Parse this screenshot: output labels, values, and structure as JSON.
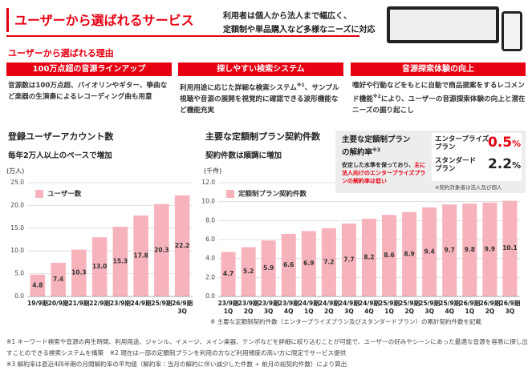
{
  "header": {
    "title": "ユーザーから選ばれるサービス",
    "tagline": "利用者は個人から法人まで幅広く、\n定額制や単品購入など多様なニーズに対応"
  },
  "reasons": {
    "title": "ユーザーから選ばれる理由",
    "items": [
      {
        "heading": "100万点超の音源ラインアップ",
        "body": [
          "音源数は100万点超、バイオリンやギター、箏曲など楽器の生演奏によるレコーディング曲も用意"
        ]
      },
      {
        "heading": "探しやすい検索システム",
        "body": [
          "利用用途に応じた詳細な検索システム",
          "※1",
          "、サンプル視聴や音源の展開を視覚的に確認できる波形機能など機能充実"
        ]
      },
      {
        "heading": "音源探索体験の向上",
        "body": [
          "嗜好や行動などをもとに自動で商品提案をするレコメンド機能",
          "※2",
          "により、ユーザーの音源探索体験の向上と潜在ニーズの掘り起こし"
        ]
      }
    ]
  },
  "chart_data": [
    {
      "type": "bar",
      "title": "登録ユーザーアカウント数",
      "subtitle": "毎年2万人以上のペースで増加",
      "unit_label": "(万人)",
      "categories": [
        "19/9期",
        "20/9期",
        "21/9期",
        "22/9期",
        "23/9期",
        "24/9期",
        "25/9期",
        "26/9期\n3Q"
      ],
      "series": [
        {
          "name": "ユーザー数",
          "color": "#f6b3bc",
          "values": [
            4.8,
            7.4,
            10.3,
            13.0,
            15.3,
            17.8,
            20.3,
            22.2
          ],
          "value_labels": [
            "4.8",
            "7.4",
            "10.3",
            "13.0",
            "15.3",
            "17.8",
            "20.3",
            "22.2"
          ]
        }
      ],
      "ylim": [
        0,
        25
      ],
      "yticks": [
        {
          "value": 0,
          "label": "0.0"
        },
        {
          "value": 5,
          "label": "5.0"
        },
        {
          "value": 10,
          "label": "10.0"
        },
        {
          "value": 15,
          "label": "15.0"
        },
        {
          "value": 20,
          "label": "20.0"
        },
        {
          "value": 25,
          "label": "25.0"
        }
      ],
      "grid": true,
      "legend": "top-left"
    },
    {
      "type": "bar",
      "title": "主要な定額制プラン契約件数",
      "subtitle": "契約件数は順調に増加",
      "unit_label": "(千件)",
      "categories": [
        "23/9期\n1Q",
        "23/9期\n2Q",
        "23/9期\n3Q",
        "23/9期\n4Q",
        "24/9期\n1Q",
        "24/9期\n2Q",
        "24/9期\n3Q",
        "24/9期\n4Q",
        "25/9期\n1Q",
        "25/9期\n2Q",
        "25/9期\n3Q",
        "25/9期\n4Q",
        "26/9期\n1Q",
        "26/9期\n2Q",
        "26/9期\n3Q"
      ],
      "series": [
        {
          "name": "定額制プラン契約件数",
          "color": "#f6b3bc",
          "values": [
            4.7,
            5.2,
            5.9,
            6.6,
            6.9,
            7.2,
            7.7,
            8.2,
            8.6,
            8.9,
            9.4,
            9.7,
            9.8,
            9.9,
            10.1
          ],
          "value_labels": [
            "4.7",
            "5.2",
            "5.9",
            "6.6",
            "6.9",
            "7.2",
            "7.7",
            "8.2",
            "8.6",
            "8.9",
            "9.4",
            "9.7",
            "9.8",
            "9.9",
            "10.1"
          ]
        }
      ],
      "ylim": [
        0,
        12
      ],
      "yticks": [
        {
          "value": 0,
          "label": "0.0"
        },
        {
          "value": 2,
          "label": "2.0"
        },
        {
          "value": 4,
          "label": "4.0"
        },
        {
          "value": 6,
          "label": "6.0"
        },
        {
          "value": 8,
          "label": "8.0"
        },
        {
          "value": 10,
          "label": "10.0"
        },
        {
          "value": 12,
          "label": "12.0"
        }
      ],
      "grid": true,
      "legend": "top-left",
      "note": "※ 主要な定額制契約件数（エンタープライズプラン及びスタンダードプラン）の累計契約件数を記載"
    }
  ],
  "churn": {
    "title": "主要な定額制プラン\nの解約率",
    "title_note": "※3",
    "text": "安定した水準を保っており、",
    "highlight": "主に法人向けのエンタープライズプランの解約率は低い",
    "plans": [
      {
        "name": "エンタープライズ\nプラン",
        "rate": 0.5,
        "unit": "%"
      },
      {
        "name": "スタンダード\nプラン",
        "rate": 2.2,
        "unit": "%"
      }
    ],
    "note": "※契約対象者は法人及び個人"
  },
  "footnotes": [
    "※1 キーワード検索や音源の再生時間、利用用途、ジャンル、イメージ、メイン楽器、テンポなどを詳細に絞り込むことが可能で、ユーザーの好みやシーンにあった最適な音源を容易に探し出すことのできる検索システムを構築",
    "※2 現在は一部の定額制プランを利用の方など利用頻度の高い方に限定でサービス提供",
    "※3 解約率は直近4四半期の月間解約率の平均値（解約率：当月の解約に伴い減少した件数 ÷ 前月の総契約件数）により算出"
  ]
}
